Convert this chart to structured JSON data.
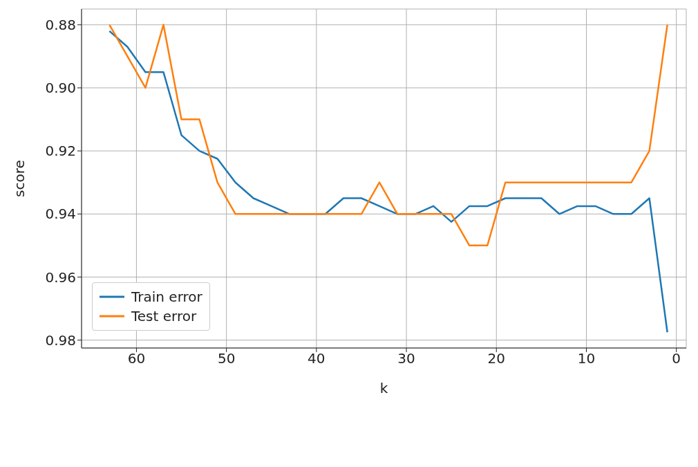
{
  "chart_data": {
    "type": "line",
    "xlabel": "k",
    "ylabel": "score",
    "x": [
      63,
      61,
      59,
      57,
      55,
      53,
      51,
      49,
      47,
      45,
      43,
      41,
      39,
      37,
      35,
      33,
      31,
      29,
      27,
      25,
      23,
      21,
      19,
      17,
      15,
      13,
      11,
      9,
      7,
      5,
      3,
      1
    ],
    "series": [
      {
        "name": "Train error",
        "color": "#1f77b4",
        "values": [
          0.882,
          0.887,
          0.895,
          0.895,
          0.915,
          0.92,
          0.9225,
          0.93,
          0.935,
          0.9375,
          0.94,
          0.94,
          0.94,
          0.935,
          0.935,
          0.9375,
          0.94,
          0.94,
          0.9375,
          0.9425,
          0.9375,
          0.9375,
          0.935,
          0.935,
          0.935,
          0.94,
          0.9375,
          0.9375,
          0.94,
          0.94,
          0.935,
          0.9775
        ]
      },
      {
        "name": "Test error",
        "color": "#ff7f0e",
        "values": [
          0.88,
          0.89,
          0.9,
          0.88,
          0.91,
          0.91,
          0.93,
          0.94,
          0.94,
          0.94,
          0.94,
          0.94,
          0.94,
          0.94,
          0.94,
          0.93,
          0.94,
          0.94,
          0.94,
          0.94,
          0.95,
          0.95,
          0.93,
          0.93,
          0.93,
          0.93,
          0.93,
          0.93,
          0.93,
          0.93,
          0.92,
          0.88
        ]
      }
    ],
    "xlim": [
      66.1,
      -1.1
    ],
    "xticks": [
      60,
      50,
      40,
      30,
      20,
      10,
      0
    ],
    "ylim": [
      0.9825,
      0.875
    ],
    "yticks": [
      0.88,
      {
        "value": 0.9,
        "label": "0.90"
      },
      0.92,
      0.94,
      0.96,
      0.98
    ],
    "grid": true,
    "legend": "bottom left"
  }
}
